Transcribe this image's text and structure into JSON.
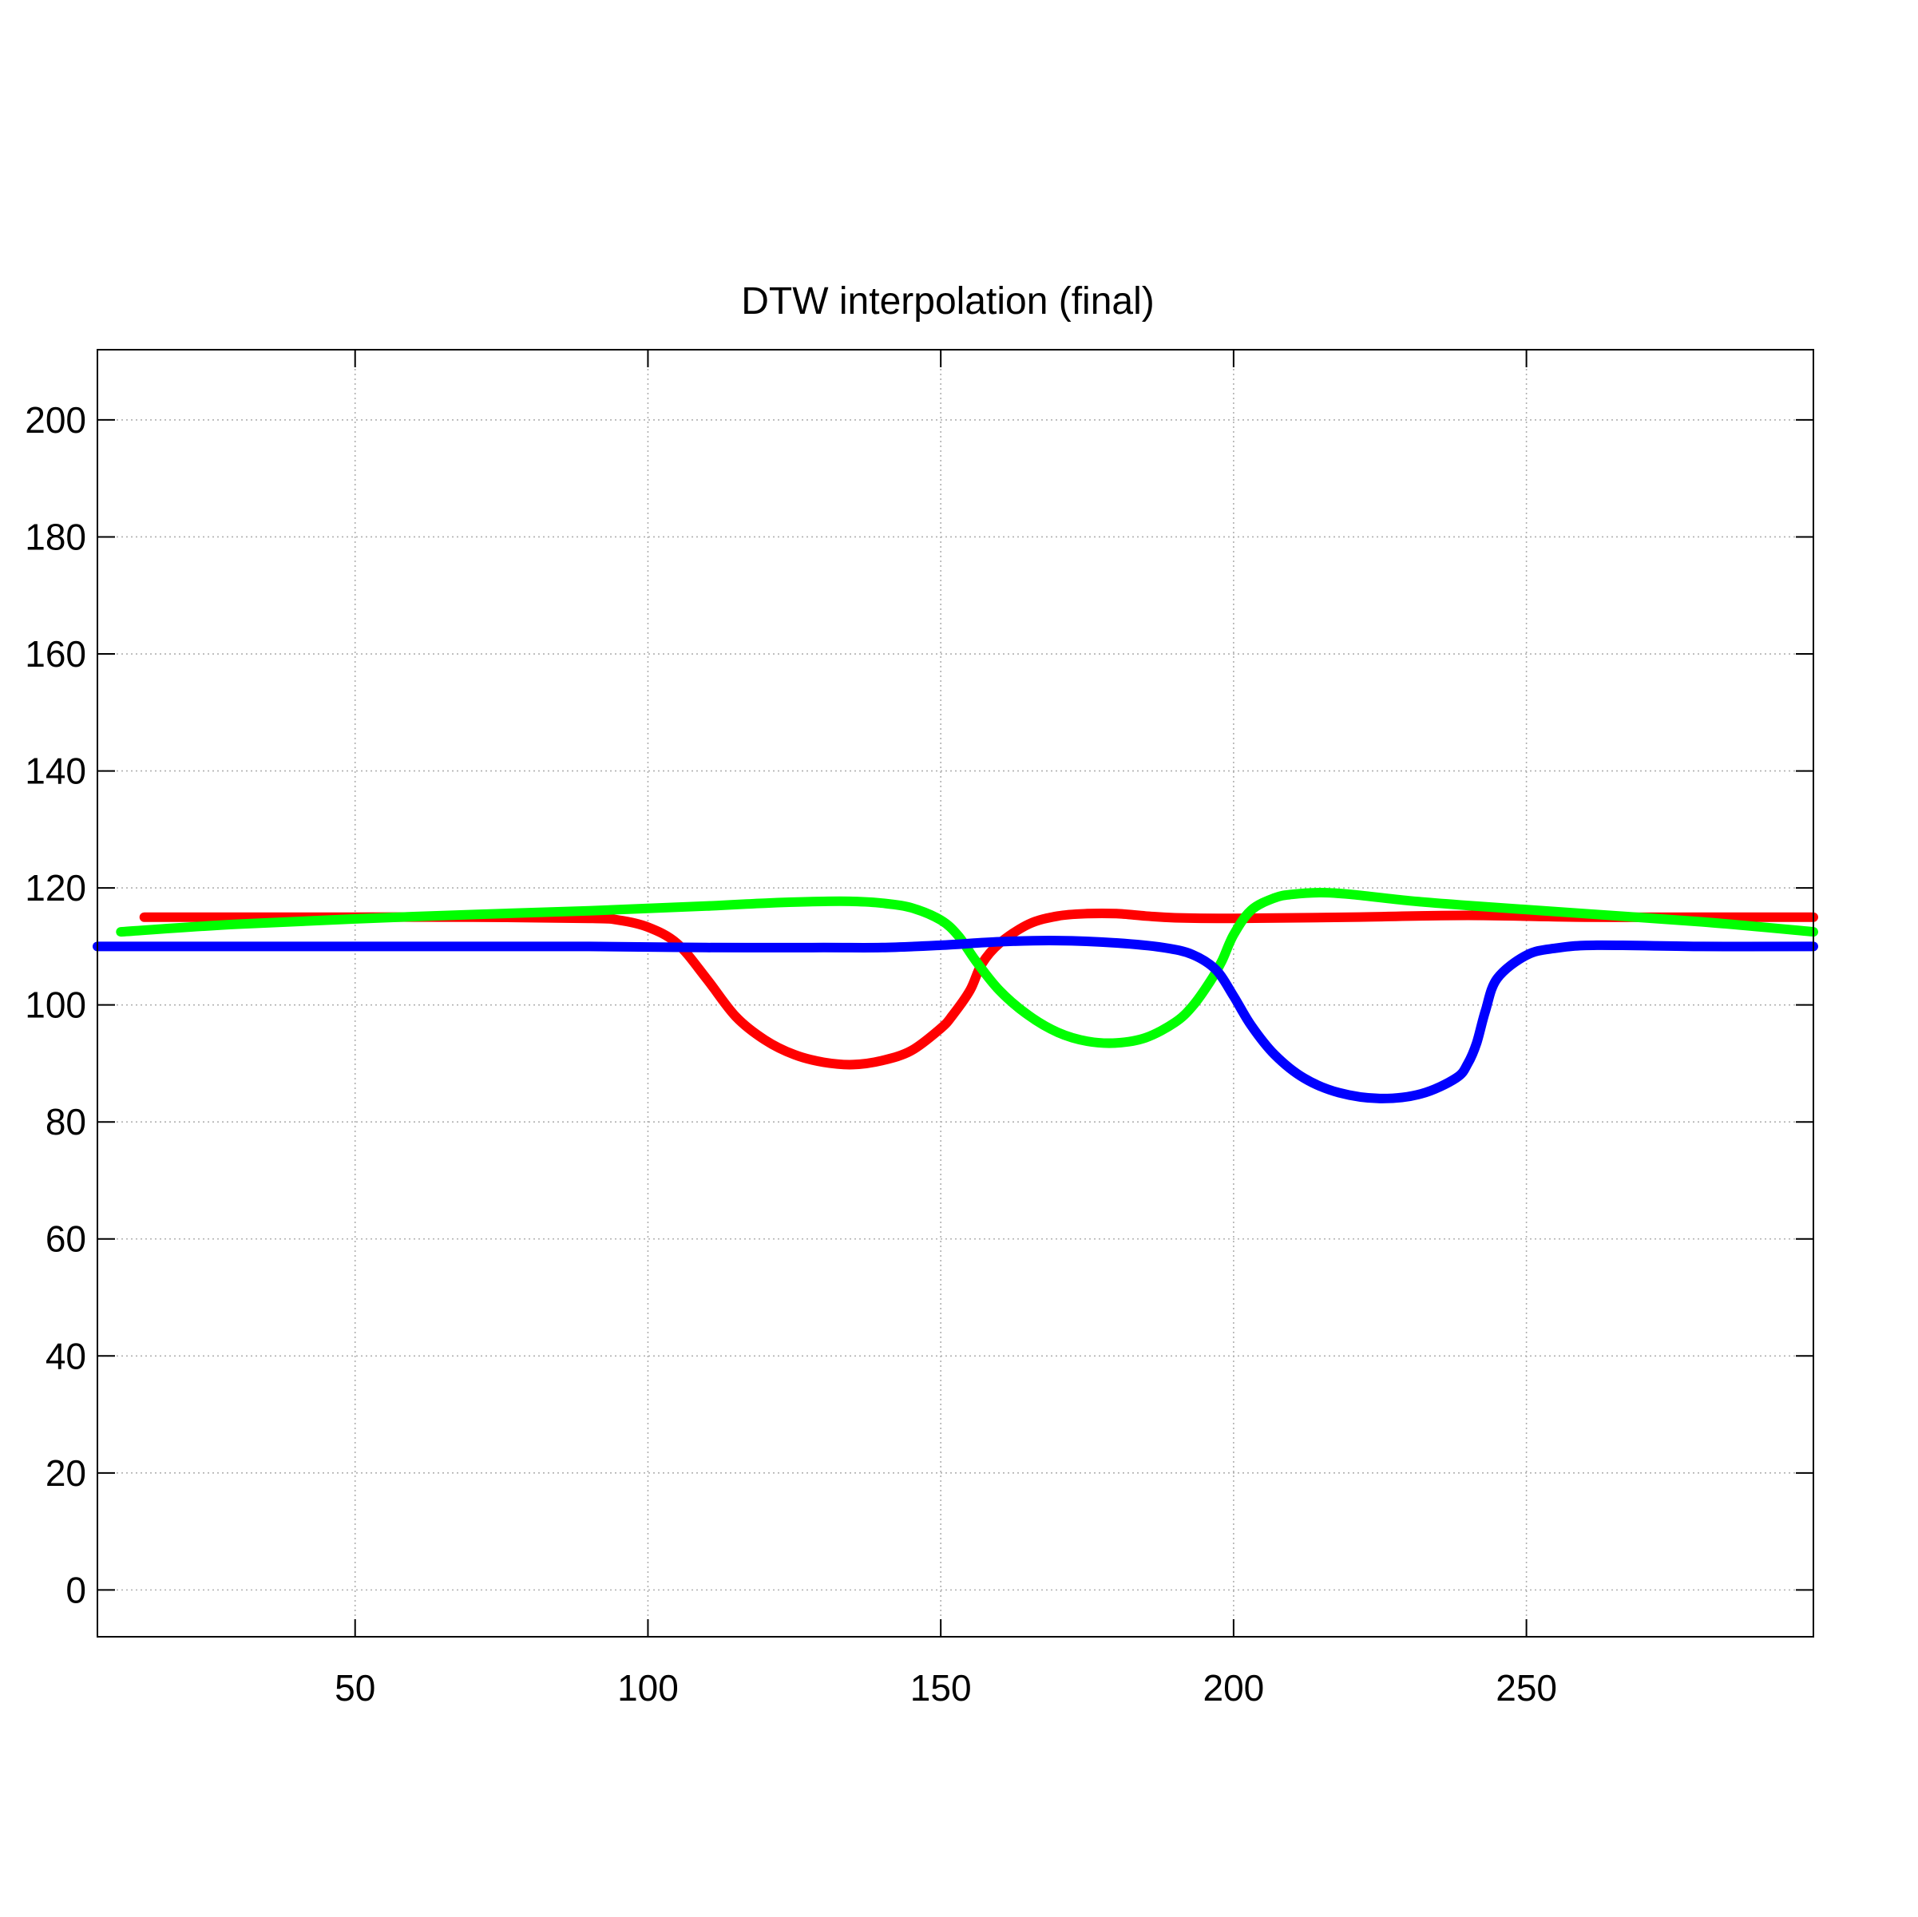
{
  "chart_data": {
    "type": "line",
    "title": "DTW interpolation (final)",
    "xlabel": "",
    "ylabel": "",
    "xlim": [
      6,
      299
    ],
    "ylim": [
      -8,
      212
    ],
    "xticks": [
      50,
      100,
      150,
      200,
      250
    ],
    "yticks": [
      0,
      20,
      40,
      60,
      80,
      100,
      120,
      140,
      160,
      180,
      200
    ],
    "grid": true,
    "series": [
      {
        "color": "#ff0000",
        "x": [
          14,
          30,
          50,
          70,
          90,
          95,
          100,
          105,
          110,
          115,
          120,
          125,
          130,
          135,
          140,
          145,
          150,
          152,
          155,
          157,
          160,
          165,
          170,
          175,
          180,
          185,
          190,
          200,
          220,
          240,
          260,
          280,
          299
        ],
        "y": [
          115,
          115,
          115,
          115,
          114.8,
          114.5,
          113.3,
          110.5,
          104.5,
          98,
          94,
          91.5,
          90.2,
          89.8,
          90.5,
          92.2,
          96,
          98.2,
          102.5,
          107,
          110.5,
          113.8,
          115.2,
          115.6,
          115.6,
          115.2,
          114.9,
          114.8,
          115,
          115.3,
          115,
          115,
          115
        ]
      },
      {
        "color": "#00ff00",
        "x": [
          10,
          30,
          60,
          90,
          110,
          120,
          130,
          135,
          140,
          145,
          150,
          153,
          156,
          160,
          165,
          170,
          175,
          180,
          185,
          190,
          193,
          196,
          198,
          200,
          203,
          207,
          210,
          215,
          220,
          230,
          240,
          260,
          280,
          299
        ],
        "y": [
          112.5,
          113.8,
          115.1,
          116.1,
          116.9,
          117.4,
          117.7,
          117.7,
          117.4,
          116.6,
          114.5,
          111.8,
          107.5,
          102.5,
          98.2,
          95.3,
          93.8,
          93.5,
          94.4,
          97,
          99.8,
          104,
          107.5,
          112,
          116.2,
          118.3,
          118.9,
          119.2,
          118.9,
          117.8,
          117,
          115.6,
          114.2,
          112.5
        ]
      },
      {
        "color": "#0000ff",
        "x": [
          6,
          30,
          60,
          90,
          110,
          130,
          140,
          150,
          160,
          170,
          180,
          188,
          193,
          197,
          200,
          203,
          207,
          212,
          218,
          225,
          232,
          238,
          240,
          241.5,
          243,
          245,
          250,
          255,
          262,
          280,
          299
        ],
        "y": [
          110,
          110,
          110,
          110,
          109.8,
          109.8,
          109.8,
          110.2,
          110.8,
          111,
          110.6,
          109.8,
          108.6,
          106,
          101.5,
          96.5,
          91.5,
          87.5,
          85,
          84,
          84.8,
          87.5,
          90,
          93.5,
          99,
          104.5,
          108.5,
          109.7,
          110.2,
          110,
          110
        ]
      }
    ]
  }
}
